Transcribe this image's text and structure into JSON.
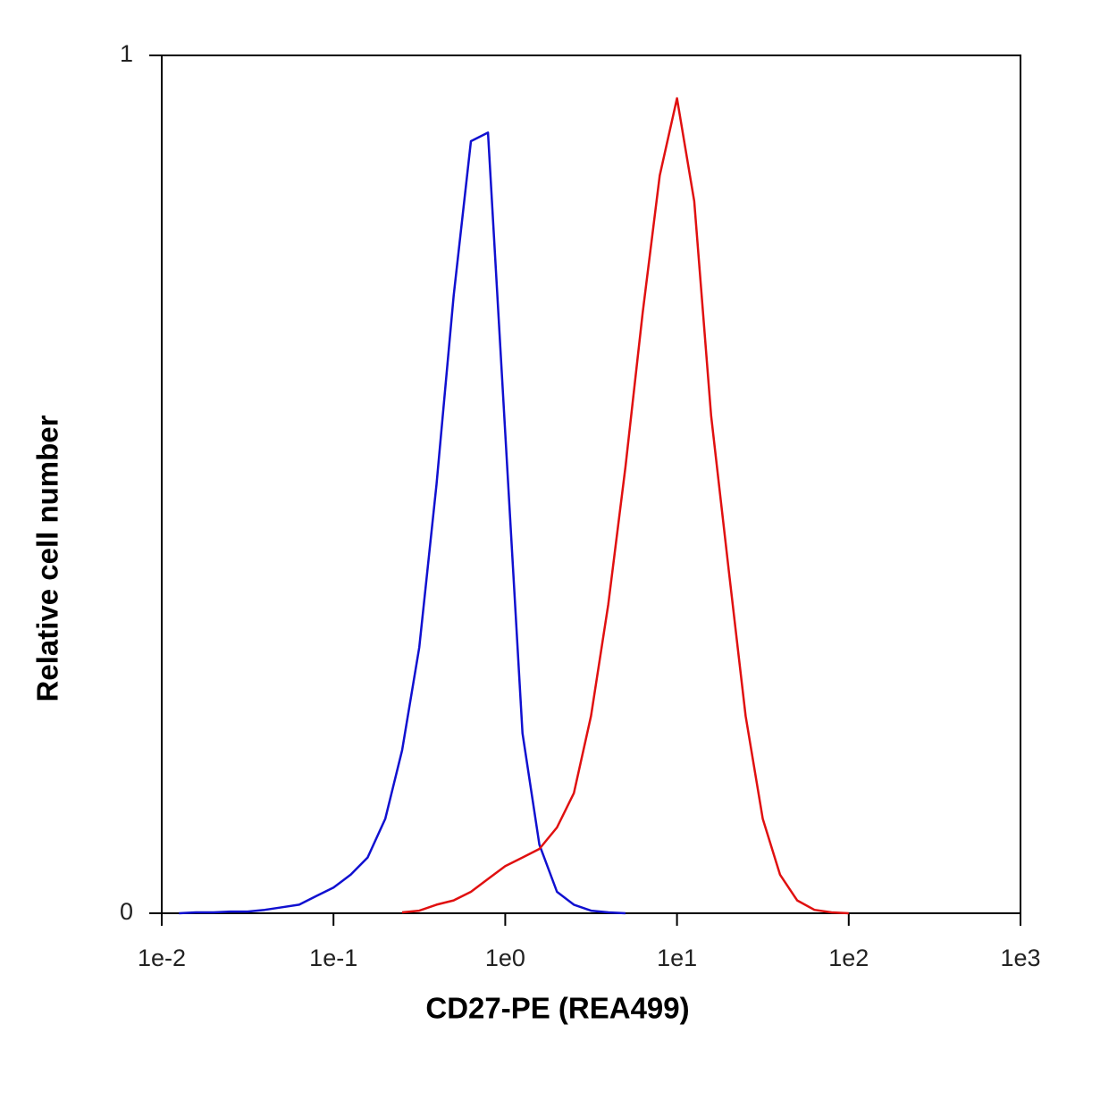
{
  "chart_data": {
    "type": "line",
    "xlabel": "CD27-PE (REA499)",
    "ylabel": "Relative cell number",
    "xscale": "log",
    "x": [
      0.0126,
      0.0158,
      0.02,
      0.0251,
      0.0316,
      0.0398,
      0.0501,
      0.0631,
      0.0794,
      0.1,
      0.126,
      0.158,
      0.2,
      0.251,
      0.316,
      0.398,
      0.501,
      0.631,
      0.794,
      1,
      1.26,
      1.58,
      2,
      2.51,
      3.16,
      3.98,
      5.01,
      6.31,
      7.94,
      10,
      12.6,
      15.8,
      20,
      25.1,
      31.6,
      39.8,
      50.1,
      63.1,
      79.4,
      100
    ],
    "series": [
      {
        "color": "#1010d0",
        "values": [
          0,
          0.001,
          0.001,
          0.002,
          0.002,
          0.004,
          0.007,
          0.01,
          0.02,
          0.03,
          0.045,
          0.065,
          0.11,
          0.19,
          0.31,
          0.5,
          0.72,
          0.9,
          0.91,
          0.56,
          0.21,
          0.08,
          0.025,
          0.01,
          0.003,
          0.001,
          0,
          null,
          null,
          null,
          null,
          null,
          null,
          null,
          null,
          null,
          null,
          null,
          null,
          null
        ]
      },
      {
        "color": "#e01010",
        "values": [
          null,
          null,
          null,
          null,
          null,
          null,
          null,
          null,
          null,
          null,
          null,
          null,
          null,
          0.001,
          0.003,
          0.01,
          0.015,
          0.025,
          0.04,
          0.055,
          0.065,
          0.075,
          0.1,
          0.14,
          0.23,
          0.36,
          0.52,
          0.7,
          0.86,
          0.95,
          0.83,
          0.58,
          0.4,
          0.23,
          0.11,
          0.045,
          0.015,
          0.004,
          0.001,
          0
        ]
      }
    ],
    "xlim": [
      0.01,
      1000
    ],
    "xticks": [
      {
        "value": 0.01,
        "label": "1e-2"
      },
      {
        "value": 0.1,
        "label": "1e-1"
      },
      {
        "value": 1,
        "label": "1e0"
      },
      {
        "value": 10,
        "label": "1e1"
      },
      {
        "value": 100,
        "label": "1e2"
      },
      {
        "value": 1000,
        "label": "1e3"
      }
    ],
    "ylim": [
      0,
      1
    ],
    "yticks": [
      0,
      1
    ]
  }
}
